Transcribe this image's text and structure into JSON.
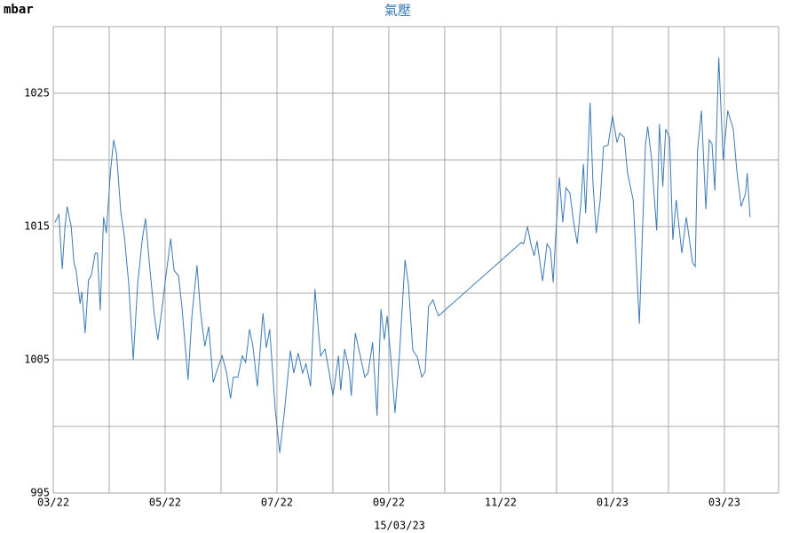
{
  "chart_data": {
    "type": "line",
    "title": "氣壓",
    "y_label": "mbar",
    "x_label": "15/03/23",
    "color": "#3a7ab5",
    "grid": true,
    "xlim": [
      0,
      12.97
    ],
    "ylim": [
      995,
      1030
    ],
    "xticks": [
      {
        "value": 0,
        "label": "03/22"
      },
      {
        "value": 2,
        "label": "05/22"
      },
      {
        "value": 4,
        "label": "07/22"
      },
      {
        "value": 6,
        "label": "09/22"
      },
      {
        "value": 8,
        "label": "11/22"
      },
      {
        "value": 10,
        "label": "01/23"
      },
      {
        "value": 12,
        "label": "03/23"
      }
    ],
    "x_minor_ticks": [
      1,
      3,
      5,
      7,
      9,
      11
    ],
    "yticks": [
      995,
      1005,
      1015,
      1025
    ],
    "y_minor_ticks": [
      1000,
      1010,
      1020,
      1030
    ],
    "x": [
      0.03,
      0.1,
      0.16,
      0.21,
      0.25,
      0.32,
      0.37,
      0.41,
      0.48,
      0.51,
      0.57,
      0.63,
      0.68,
      0.75,
      0.79,
      0.84,
      0.9,
      0.95,
      1.02,
      1.08,
      1.13,
      1.21,
      1.27,
      1.35,
      1.43,
      1.51,
      1.59,
      1.65,
      1.73,
      1.81,
      1.87,
      1.95,
      2.0,
      2.1,
      2.16,
      2.24,
      2.3,
      2.41,
      2.48,
      2.57,
      2.63,
      2.71,
      2.78,
      2.86,
      2.92,
      3.02,
      3.1,
      3.17,
      3.22,
      3.3,
      3.38,
      3.44,
      3.51,
      3.57,
      3.65,
      3.75,
      3.81,
      3.87,
      3.97,
      4.05,
      4.13,
      4.24,
      4.3,
      4.38,
      4.46,
      4.52,
      4.6,
      4.68,
      4.78,
      4.86,
      4.94,
      5.0,
      5.1,
      5.14,
      5.21,
      5.29,
      5.33,
      5.4,
      5.49,
      5.57,
      5.63,
      5.71,
      5.79,
      5.86,
      5.92,
      5.97,
      6.03,
      6.11,
      6.19,
      6.29,
      6.35,
      6.43,
      6.51,
      6.59,
      6.65,
      6.71,
      6.79,
      6.84,
      6.89,
      8.37,
      8.41,
      8.48,
      8.54,
      8.6,
      8.65,
      8.75,
      8.83,
      8.89,
      8.94,
      8.98,
      9.05,
      9.11,
      9.17,
      9.24,
      9.3,
      9.37,
      9.44,
      9.48,
      9.52,
      9.6,
      9.65,
      9.71,
      9.78,
      9.84,
      9.92,
      10.0,
      10.08,
      10.13,
      10.21,
      10.27,
      10.37,
      10.48,
      10.52,
      10.59,
      10.63,
      10.7,
      10.79,
      10.84,
      10.9,
      10.95,
      11.02,
      11.08,
      11.14,
      11.24,
      11.32,
      11.43,
      11.48,
      11.52,
      11.59,
      11.67,
      11.73,
      11.78,
      11.83,
      11.9,
      11.98,
      12.06,
      12.16,
      12.22,
      12.3,
      12.38,
      12.41,
      12.46
    ],
    "values": [
      1015.3,
      1015.9,
      1011.8,
      1015,
      1016.5,
      1015,
      1012.3,
      1011.7,
      1009.2,
      1010.1,
      1007,
      1011,
      1011.3,
      1013,
      1013,
      1008.7,
      1015.7,
      1014.5,
      1019,
      1021.5,
      1020.5,
      1016,
      1014.3,
      1010.7,
      1005,
      1010.7,
      1014,
      1015.6,
      1011.7,
      1008.3,
      1006.5,
      1009,
      1010.8,
      1014.1,
      1011.7,
      1011.3,
      1009,
      1003.5,
      1008.3,
      1012.1,
      1008.7,
      1006,
      1007.5,
      1003.3,
      1004.1,
      1005.3,
      1004,
      1002.1,
      1003.7,
      1003.7,
      1005.3,
      1004.8,
      1007.3,
      1006,
      1003,
      1008.5,
      1005.9,
      1007.3,
      1001.2,
      998,
      1001,
      1005.7,
      1004,
      1005.5,
      1004,
      1004.7,
      1003,
      1010.3,
      1005.3,
      1005.8,
      1003.9,
      1002.3,
      1005.3,
      1002.7,
      1005.8,
      1004.3,
      1002.3,
      1007,
      1005.3,
      1003.7,
      1004,
      1006.3,
      1000.8,
      1008.8,
      1006.5,
      1008.3,
      1005.5,
      1001,
      1005.3,
      1012.5,
      1010.7,
      1005.7,
      1005.2,
      1003.7,
      1004.1,
      1009,
      1009.5,
      1008.8,
      1008.3,
      1013.8,
      1013.7,
      1015,
      1013.7,
      1012.8,
      1013.9,
      1010.9,
      1013.7,
      1013.3,
      1010.8,
      1014,
      1018.7,
      1015.3,
      1017.9,
      1017.5,
      1015.5,
      1013.7,
      1017,
      1019.7,
      1016,
      1024.3,
      1018.3,
      1014.5,
      1017,
      1021,
      1021.1,
      1023.3,
      1021.3,
      1022,
      1021.7,
      1019,
      1017,
      1007.7,
      1012.7,
      1021.2,
      1022.5,
      1020,
      1014.7,
      1022.7,
      1018,
      1022.3,
      1021.7,
      1014,
      1017,
      1013,
      1015.7,
      1012.3,
      1012,
      1020.7,
      1023.7,
      1016.3,
      1021.5,
      1021.2,
      1017.7,
      1027.7,
      1020,
      1023.7,
      1022.3,
      1019.3,
      1016.5,
      1017.5,
      1019,
      1015.7
    ]
  }
}
